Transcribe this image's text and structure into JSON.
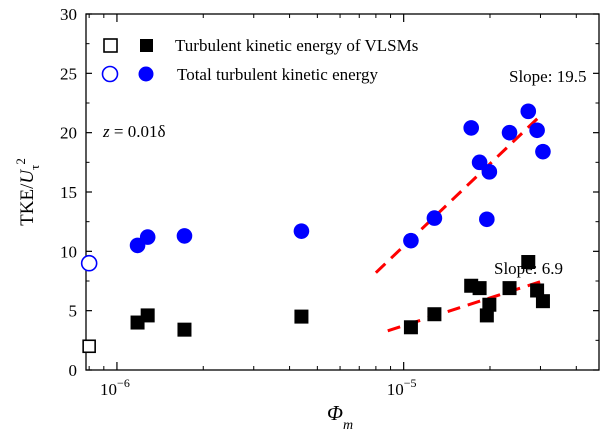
{
  "chart_data": {
    "type": "scatter",
    "xscale": "log",
    "xlim": [
      7.8e-07,
      4.8e-05
    ],
    "ylim": [
      0,
      30
    ],
    "ylabel_main": "TKE/",
    "ylabel_symbol": "U",
    "ylabel_sub": "τ",
    "ylabel_sup": "2",
    "xlabel_symbol": "Φ",
    "xlabel_sub": "m",
    "x_ticks": [
      {
        "value": 1e-06,
        "base": "10",
        "exp": "−6"
      },
      {
        "value": 1e-05,
        "base": "10",
        "exp": "−5"
      }
    ],
    "y_ticks": [
      0,
      5,
      10,
      15,
      20,
      25,
      30
    ],
    "legend": [
      {
        "label": "Turbulent kinetic energy of VLSMs",
        "marker": "square",
        "color": "#000000"
      },
      {
        "label": "Total turbulent kinetic energy",
        "marker": "circle",
        "color": "#0000ff"
      }
    ],
    "annotation_z": {
      "prefix": "z",
      "rest": " = 0.01δ"
    },
    "annotations": [
      "Slope: 19.5",
      "Slope: 6.9"
    ],
    "series": [
      {
        "name": "Turbulent kinetic energy of VLSMs",
        "marker": "square",
        "color": "#000000",
        "points": [
          [
            1.18e-06,
            4.0
          ],
          [
            1.28e-06,
            4.6
          ],
          [
            1.72e-06,
            3.4
          ],
          [
            4.4e-06,
            4.5
          ],
          [
            1.06e-05,
            3.6
          ],
          [
            1.28e-05,
            4.7
          ],
          [
            1.72e-05,
            7.1
          ],
          [
            1.84e-05,
            6.9
          ],
          [
            1.95e-05,
            4.6
          ],
          [
            1.99e-05,
            5.5
          ],
          [
            2.34e-05,
            6.9
          ],
          [
            2.72e-05,
            9.1
          ],
          [
            2.92e-05,
            6.7
          ],
          [
            3.06e-05,
            5.8
          ]
        ],
        "hollow_points": [
          [
            8e-07,
            2.0
          ]
        ]
      },
      {
        "name": "Total turbulent kinetic energy",
        "marker": "circle",
        "color": "#0000ff",
        "points": [
          [
            1.18e-06,
            10.5
          ],
          [
            1.28e-06,
            11.2
          ],
          [
            1.72e-06,
            11.3
          ],
          [
            4.4e-06,
            11.7
          ],
          [
            1.06e-05,
            10.9
          ],
          [
            1.28e-05,
            12.8
          ],
          [
            1.72e-05,
            20.4
          ],
          [
            1.84e-05,
            17.5
          ],
          [
            1.95e-05,
            12.7
          ],
          [
            1.99e-05,
            16.7
          ],
          [
            2.34e-05,
            20.0
          ],
          [
            2.72e-05,
            21.8
          ],
          [
            2.92e-05,
            20.2
          ],
          [
            3.06e-05,
            18.4
          ]
        ],
        "hollow_points": [
          [
            8e-07,
            9.0
          ]
        ]
      }
    ],
    "fit_lines": [
      {
        "label": "Slope: 19.5",
        "color": "#ff0000",
        "from": [
          8e-06,
          8.2
        ],
        "to": [
          3.05e-05,
          21.6
        ]
      },
      {
        "label": "Slope: 6.9",
        "color": "#ff0000",
        "from": [
          8.8e-06,
          3.3
        ],
        "to": [
          3.05e-05,
          7.5
        ]
      }
    ]
  }
}
